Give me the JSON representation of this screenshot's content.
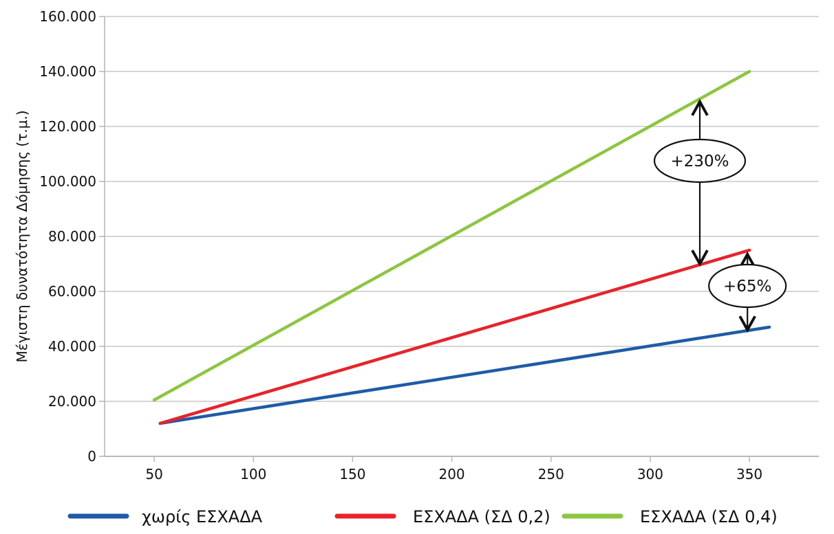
{
  "chart_data": {
    "type": "line",
    "title": "",
    "xlabel": "",
    "ylabel": "Μέγιστη δυνατότητα Δόμησης (τ.μ.)",
    "xlim": [
      25,
      385
    ],
    "ylim": [
      0,
      160000
    ],
    "x_ticks": [
      50,
      100,
      150,
      200,
      250,
      300,
      350
    ],
    "x_tick_labels": [
      "50",
      "100",
      "150",
      "200",
      "250",
      "300",
      "350"
    ],
    "y_ticks": [
      0,
      20000,
      40000,
      60000,
      80000,
      100000,
      120000,
      140000,
      160000
    ],
    "y_tick_labels": [
      "0",
      "20.000",
      "40.000",
      "60.000",
      "80.000",
      "100.000",
      "120.000",
      "140.000",
      "160.000"
    ],
    "grid": "horizontal",
    "legend_position": "bottom",
    "series": [
      {
        "name": "χωρίς ΕΣΧΑΔΑ",
        "color": "#1f5ba6",
        "points": [
          [
            53,
            12000
          ],
          [
            360,
            47000
          ]
        ]
      },
      {
        "name": "ΕΣΧΑΔΑ (ΣΔ 0,2)",
        "color": "#e8232a",
        "points": [
          [
            53,
            12000
          ],
          [
            350,
            75000
          ]
        ]
      },
      {
        "name": "ΕΣΧΑΔΑ (ΣΔ 0,4)",
        "color": "#8cc63f",
        "points": [
          [
            50,
            20500
          ],
          [
            350,
            140000
          ]
        ]
      }
    ],
    "annotations": [
      {
        "label": "+230%",
        "x": 325,
        "y_from": 70000,
        "y_to": 129000,
        "label_y": 107500
      },
      {
        "label": "+65%",
        "x": 349,
        "y_from": 46000,
        "y_to": 73500,
        "label_y": 62000
      }
    ]
  }
}
